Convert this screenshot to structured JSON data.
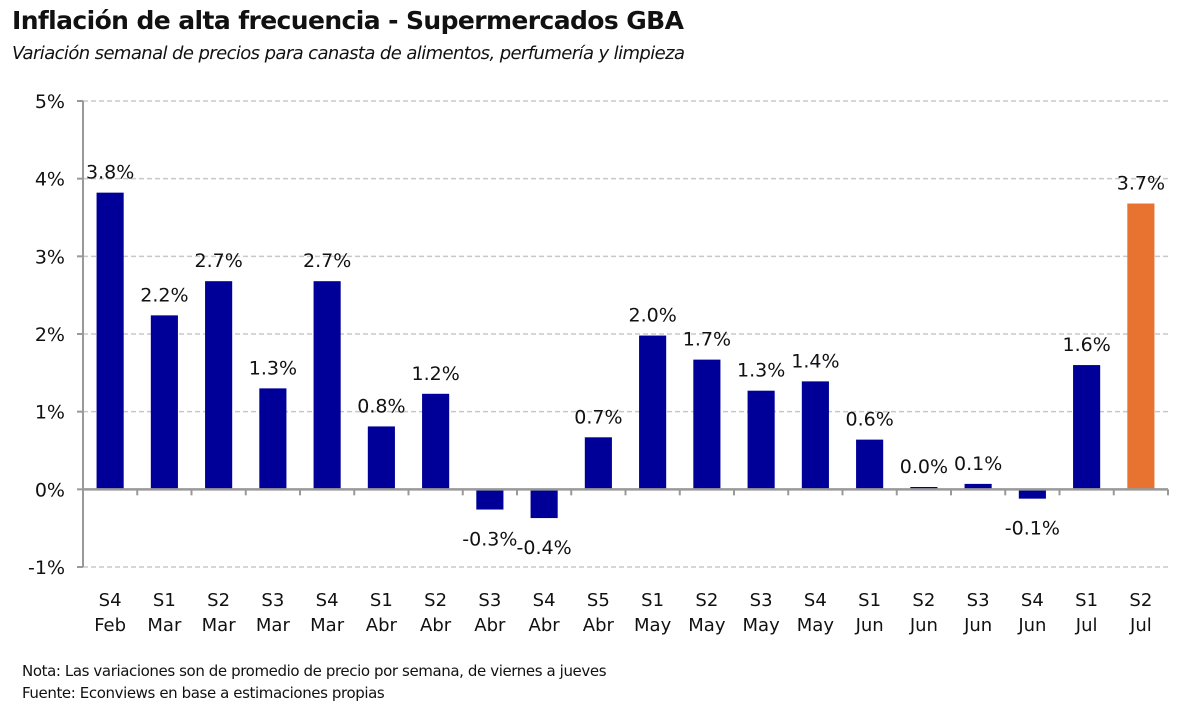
{
  "header": {
    "title": "Inflación de alta frecuencia - Supermercados GBA",
    "subtitle": "Variación semanal de precios para canasta de alimentos, perfumería y limpieza"
  },
  "footer": {
    "note": "Nota: Las variaciones son de promedio de precio por semana, de viernes a jueves",
    "source": "Fuente: Econviews en base a estimaciones propias"
  },
  "chart_data": {
    "type": "bar",
    "title": "Inflación de alta frecuencia - Supermercados GBA",
    "subtitle": "Variación semanal de precios para canasta de alimentos, perfumería y limpieza",
    "xlabel": "",
    "ylabel": "",
    "ylim": [
      -1,
      5
    ],
    "yticks": [
      -1,
      0,
      1,
      2,
      3,
      4,
      5
    ],
    "ytick_labels": [
      "-1%",
      "0%",
      "1%",
      "2%",
      "3%",
      "4%",
      "5%"
    ],
    "grid": true,
    "legend": "none",
    "categories": [
      {
        "week": "S4",
        "month": "Feb"
      },
      {
        "week": "S1",
        "month": "Mar"
      },
      {
        "week": "S2",
        "month": "Mar"
      },
      {
        "week": "S3",
        "month": "Mar"
      },
      {
        "week": "S4",
        "month": "Mar"
      },
      {
        "week": "S1",
        "month": "Abr"
      },
      {
        "week": "S2",
        "month": "Abr"
      },
      {
        "week": "S3",
        "month": "Abr"
      },
      {
        "week": "S4",
        "month": "Abr"
      },
      {
        "week": "S5",
        "month": "Abr"
      },
      {
        "week": "S1",
        "month": "May"
      },
      {
        "week": "S2",
        "month": "May"
      },
      {
        "week": "S3",
        "month": "May"
      },
      {
        "week": "S4",
        "month": "May"
      },
      {
        "week": "S1",
        "month": "Jun"
      },
      {
        "week": "S2",
        "month": "Jun"
      },
      {
        "week": "S3",
        "month": "Jun"
      },
      {
        "week": "S4",
        "month": "Jun"
      },
      {
        "week": "S1",
        "month": "Jul"
      },
      {
        "week": "S2",
        "month": "Jul"
      }
    ],
    "values": [
      3.82,
      2.24,
      2.68,
      1.3,
      2.68,
      0.81,
      1.23,
      -0.26,
      -0.37,
      0.67,
      1.98,
      1.67,
      1.27,
      1.39,
      0.64,
      0.03,
      0.07,
      -0.12,
      1.6,
      3.68
    ],
    "data_labels": [
      "3.8%",
      "2.2%",
      "2.7%",
      "1.3%",
      "2.7%",
      "0.8%",
      "1.2%",
      "-0.3%",
      "-0.4%",
      "0.7%",
      "2.0%",
      "1.7%",
      "1.3%",
      "1.4%",
      "0.6%",
      "0.0%",
      "0.1%",
      "-0.1%",
      "1.6%",
      "3.7%"
    ],
    "colors": {
      "default": "#000099",
      "highlight": "#E8722F",
      "highlight_index": 19,
      "grid": "#C8C8C8",
      "axis": "#999999"
    }
  }
}
